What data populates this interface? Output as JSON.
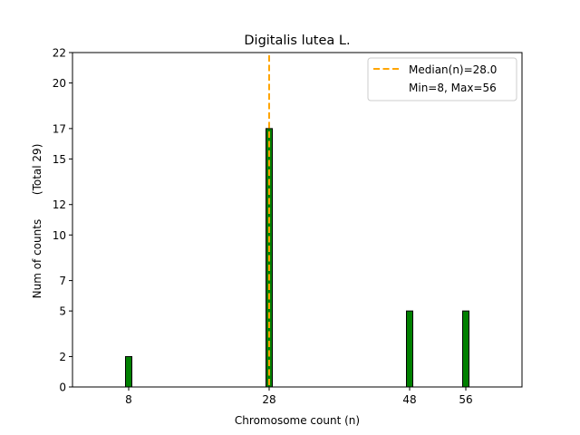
{
  "chart_data": {
    "type": "bar",
    "title": "Digitalis lutea L.",
    "xlabel": "Chromosome count (n)",
    "ylabel": "Num of counts       (Total 29)",
    "x": [
      8,
      28,
      48,
      56
    ],
    "values": [
      2,
      17,
      5,
      5
    ],
    "xlim": [
      0,
      64
    ],
    "ylim": [
      0,
      22
    ],
    "xticks": [
      8,
      28,
      48,
      56
    ],
    "yticks": [
      0,
      2,
      5,
      7,
      10,
      12,
      15,
      17,
      20,
      22
    ],
    "bar_color": "#008000",
    "bar_edge_color": "#000000",
    "median": 28.0,
    "median_color": "#FFA500",
    "legend": {
      "placement": "top-right",
      "entries": [
        "Median(n)=28.0",
        "Min=8, Max=56"
      ]
    }
  }
}
